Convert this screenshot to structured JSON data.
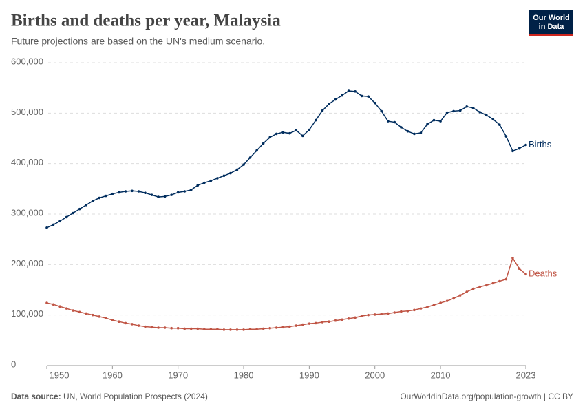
{
  "chart_data": {
    "type": "line",
    "title": "Births and deaths per year, Malaysia",
    "subtitle": "Future projections are based on the UN's medium scenario.",
    "source_label": "Data source:",
    "source": "UN, World Population Prospects (2024)",
    "note": "OurWorldinData.org/population-growth | CC BY",
    "logo": [
      "Our World",
      "in Data"
    ],
    "x": [
      1950,
      1951,
      1952,
      1953,
      1954,
      1955,
      1956,
      1957,
      1958,
      1959,
      1960,
      1961,
      1962,
      1963,
      1964,
      1965,
      1966,
      1967,
      1968,
      1969,
      1970,
      1971,
      1972,
      1973,
      1974,
      1975,
      1976,
      1977,
      1978,
      1979,
      1980,
      1981,
      1982,
      1983,
      1984,
      1985,
      1986,
      1987,
      1988,
      1989,
      1990,
      1991,
      1992,
      1993,
      1994,
      1995,
      1996,
      1997,
      1998,
      1999,
      2000,
      2001,
      2002,
      2003,
      2004,
      2005,
      2006,
      2007,
      2008,
      2009,
      2010,
      2011,
      2012,
      2013,
      2014,
      2015,
      2016,
      2017,
      2018,
      2019,
      2020,
      2021,
      2022,
      2023
    ],
    "series": [
      {
        "name": "Births",
        "color": "#002d5e",
        "values": [
          273000,
          279000,
          286000,
          294000,
          302000,
          310000,
          318000,
          326000,
          332000,
          336000,
          340000,
          343000,
          345000,
          346000,
          345000,
          342000,
          338000,
          334000,
          335000,
          338000,
          343000,
          345000,
          348000,
          357000,
          362000,
          366000,
          371000,
          376000,
          381000,
          388000,
          398000,
          412000,
          426000,
          440000,
          452000,
          459000,
          462000,
          460000,
          466000,
          455000,
          467000,
          486000,
          505000,
          518000,
          527000,
          535000,
          544000,
          543000,
          534000,
          533000,
          520000,
          504000,
          484000,
          482000,
          472000,
          464000,
          459000,
          461000,
          478000,
          486000,
          484000,
          501000,
          504000,
          505000,
          513000,
          510000,
          502000,
          496000,
          488000,
          477000,
          454000,
          425000,
          430000,
          437000
        ]
      },
      {
        "name": "Deaths",
        "color": "#c05545",
        "values": [
          124000,
          121000,
          117000,
          113000,
          109000,
          106000,
          103000,
          100000,
          97000,
          94000,
          90000,
          87000,
          84000,
          82000,
          79000,
          77000,
          76000,
          75000,
          75000,
          74000,
          74000,
          73000,
          73000,
          73000,
          72000,
          72000,
          72000,
          71000,
          71000,
          71000,
          71000,
          72000,
          72000,
          73000,
          74000,
          75000,
          76000,
          77000,
          79000,
          81000,
          83000,
          84000,
          86000,
          87000,
          89000,
          91000,
          93000,
          95000,
          98000,
          100000,
          101000,
          102000,
          103000,
          105000,
          107000,
          108000,
          110000,
          113000,
          116000,
          120000,
          124000,
          128000,
          133000,
          139000,
          146000,
          152000,
          156000,
          159000,
          163000,
          167000,
          171000,
          213000,
          192000,
          181000
        ]
      }
    ],
    "xlim": [
      1950,
      2023
    ],
    "xticks": [
      1950,
      1960,
      1970,
      1980,
      1990,
      2000,
      2010,
      2023
    ],
    "ylim": [
      0,
      600000
    ],
    "yticks": [
      0,
      {
        "value": 100000,
        "label": "100,000"
      },
      {
        "value": 200000,
        "label": "200,000"
      },
      {
        "value": 300000,
        "label": "300,000"
      },
      {
        "value": 400000,
        "label": "400,000"
      },
      {
        "value": 500000,
        "label": "500,000"
      },
      {
        "value": 600000,
        "label": "600,000"
      }
    ],
    "grid": true
  }
}
